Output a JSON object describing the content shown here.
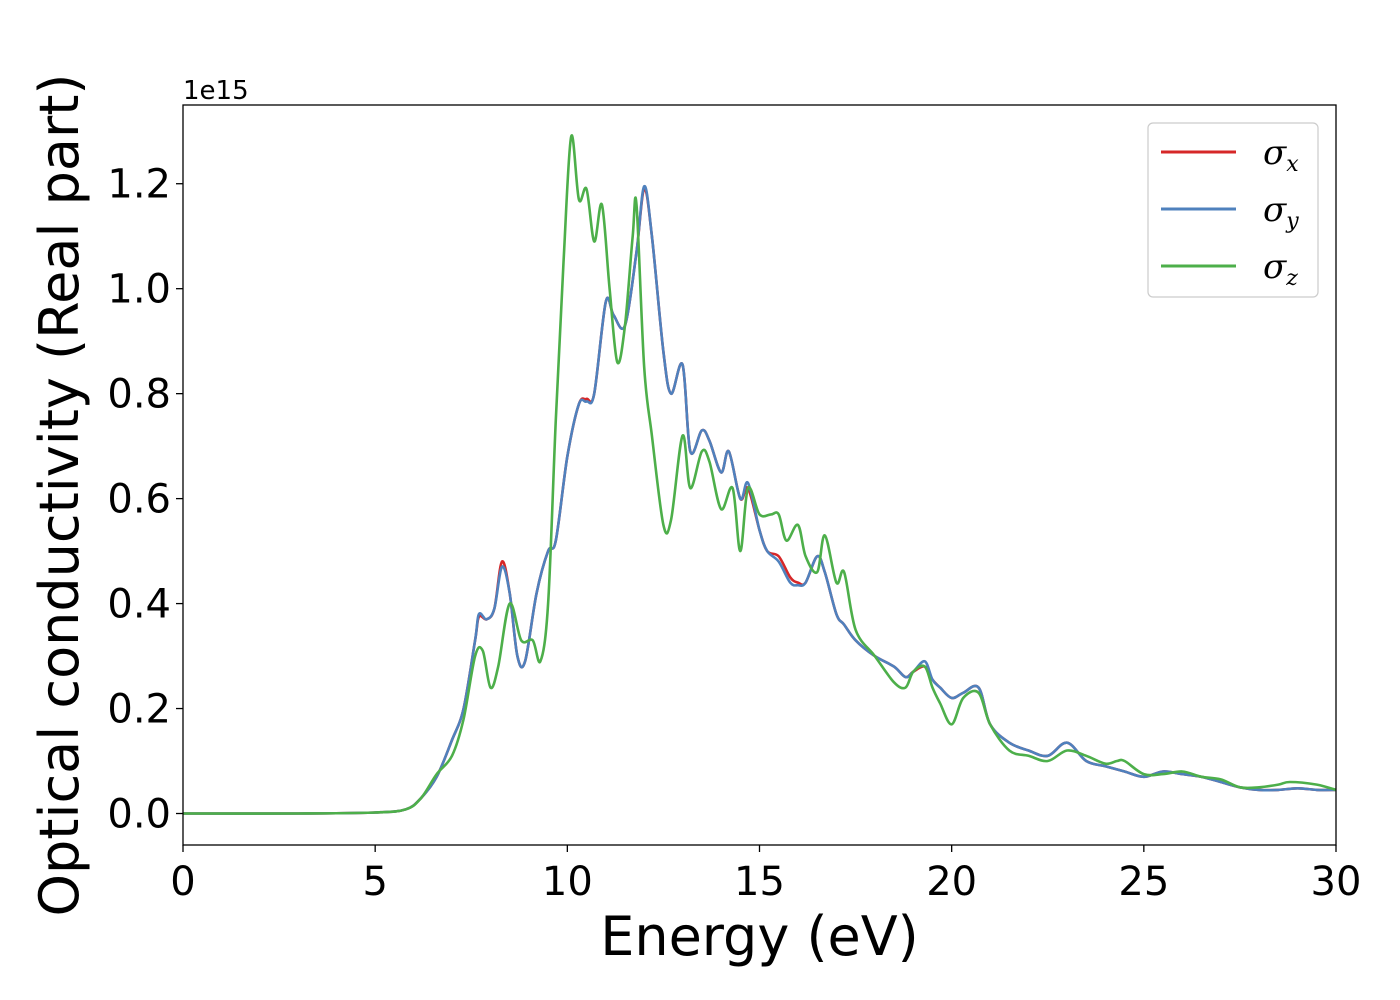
{
  "chart_data": {
    "type": "line",
    "xlabel": "Energy (eV)",
    "ylabel": "Optical conductivity (Real part)",
    "y_offset_label": "1e15",
    "xlim": [
      0,
      30
    ],
    "ylim": [
      -0.06,
      1.35
    ],
    "x_ticks": [
      0,
      5,
      10,
      15,
      20,
      25,
      30
    ],
    "y_ticks": [
      0.0,
      0.2,
      0.4,
      0.6,
      0.8,
      1.0,
      1.2
    ],
    "x_tick_labels": [
      "0",
      "5",
      "10",
      "15",
      "20",
      "25",
      "30"
    ],
    "y_tick_labels": [
      "0.0",
      "0.2",
      "0.4",
      "0.6",
      "0.8",
      "1.0",
      "1.2"
    ],
    "legend_position": "top-right",
    "grid": false,
    "series": [
      {
        "name": "σx",
        "legend_base": "σ",
        "legend_sub": "x",
        "color": "#d62728",
        "x": [
          0,
          3,
          5,
          5.8,
          6.2,
          6.6,
          7.0,
          7.3,
          7.6,
          7.7,
          7.9,
          8.1,
          8.3,
          8.5,
          8.7,
          8.9,
          9.2,
          9.5,
          9.7,
          10.0,
          10.3,
          10.5,
          10.7,
          11.0,
          11.2,
          11.5,
          11.8,
          12.0,
          12.2,
          12.5,
          12.7,
          13.0,
          13.2,
          13.5,
          13.7,
          14.0,
          14.2,
          14.5,
          14.7,
          15.0,
          15.2,
          15.5,
          15.8,
          16.0,
          16.2,
          16.5,
          16.7,
          17.0,
          17.2,
          17.5,
          18.0,
          18.5,
          18.8,
          19.0,
          19.3,
          19.5,
          19.7,
          20.0,
          20.3,
          20.7,
          21.0,
          21.5,
          22.0,
          22.5,
          23.0,
          23.5,
          24.0,
          24.5,
          25.0,
          25.5,
          26.0,
          26.5,
          27.0,
          27.5,
          28.0,
          28.5,
          29.0,
          29.5,
          30.0
        ],
        "y": [
          0.0,
          0.0,
          0.002,
          0.008,
          0.03,
          0.07,
          0.14,
          0.2,
          0.33,
          0.375,
          0.37,
          0.39,
          0.48,
          0.42,
          0.3,
          0.29,
          0.42,
          0.5,
          0.52,
          0.68,
          0.78,
          0.79,
          0.8,
          0.975,
          0.95,
          0.93,
          1.07,
          1.19,
          1.1,
          0.88,
          0.8,
          0.855,
          0.69,
          0.73,
          0.71,
          0.65,
          0.69,
          0.6,
          0.62,
          0.54,
          0.5,
          0.49,
          0.45,
          0.44,
          0.44,
          0.49,
          0.46,
          0.38,
          0.36,
          0.33,
          0.3,
          0.28,
          0.26,
          0.27,
          0.28,
          0.255,
          0.24,
          0.22,
          0.23,
          0.24,
          0.17,
          0.135,
          0.12,
          0.11,
          0.135,
          0.1,
          0.09,
          0.08,
          0.07,
          0.08,
          0.075,
          0.07,
          0.06,
          0.05,
          0.045,
          0.045,
          0.048,
          0.045,
          0.045
        ]
      },
      {
        "name": "σy",
        "legend_base": "σ",
        "legend_sub": "y",
        "color": "#4f81bd",
        "x": [
          0,
          3,
          5,
          5.8,
          6.2,
          6.6,
          7.0,
          7.3,
          7.6,
          7.7,
          7.9,
          8.1,
          8.3,
          8.5,
          8.7,
          8.9,
          9.2,
          9.5,
          9.7,
          10.0,
          10.3,
          10.5,
          10.7,
          11.0,
          11.2,
          11.5,
          11.8,
          12.0,
          12.2,
          12.5,
          12.7,
          13.0,
          13.2,
          13.5,
          13.7,
          14.0,
          14.2,
          14.5,
          14.7,
          15.0,
          15.2,
          15.5,
          15.8,
          16.0,
          16.2,
          16.5,
          16.7,
          17.0,
          17.2,
          17.5,
          18.0,
          18.5,
          18.8,
          19.0,
          19.3,
          19.5,
          19.7,
          20.0,
          20.3,
          20.7,
          21.0,
          21.5,
          22.0,
          22.5,
          23.0,
          23.5,
          24.0,
          24.5,
          25.0,
          25.5,
          26.0,
          26.5,
          27.0,
          27.5,
          28.0,
          28.5,
          29.0,
          29.5,
          30.0
        ],
        "y": [
          0.0,
          0.0,
          0.002,
          0.008,
          0.03,
          0.07,
          0.14,
          0.2,
          0.33,
          0.38,
          0.37,
          0.39,
          0.47,
          0.42,
          0.3,
          0.29,
          0.42,
          0.5,
          0.52,
          0.68,
          0.78,
          0.785,
          0.8,
          0.975,
          0.95,
          0.93,
          1.07,
          1.195,
          1.1,
          0.88,
          0.8,
          0.855,
          0.69,
          0.73,
          0.71,
          0.65,
          0.69,
          0.6,
          0.63,
          0.54,
          0.5,
          0.48,
          0.44,
          0.435,
          0.44,
          0.49,
          0.46,
          0.38,
          0.36,
          0.33,
          0.3,
          0.28,
          0.26,
          0.27,
          0.29,
          0.255,
          0.24,
          0.22,
          0.23,
          0.24,
          0.17,
          0.135,
          0.12,
          0.11,
          0.135,
          0.1,
          0.09,
          0.08,
          0.07,
          0.08,
          0.075,
          0.07,
          0.06,
          0.05,
          0.045,
          0.045,
          0.048,
          0.045,
          0.045
        ]
      },
      {
        "name": "σz",
        "legend_base": "σ",
        "legend_sub": "z",
        "color": "#4daf4a",
        "x": [
          0,
          3,
          5,
          5.8,
          6.2,
          6.6,
          7.0,
          7.3,
          7.6,
          7.8,
          8.0,
          8.2,
          8.5,
          8.8,
          9.1,
          9.3,
          9.5,
          9.7,
          9.9,
          10.1,
          10.3,
          10.5,
          10.7,
          10.9,
          11.1,
          11.3,
          11.5,
          11.7,
          11.8,
          12.0,
          12.2,
          12.5,
          12.7,
          13.0,
          13.2,
          13.5,
          13.7,
          14.0,
          14.3,
          14.5,
          14.7,
          15.0,
          15.3,
          15.5,
          15.7,
          16.0,
          16.2,
          16.5,
          16.7,
          17.0,
          17.2,
          17.5,
          18.0,
          18.5,
          18.8,
          19.0,
          19.3,
          19.5,
          19.7,
          20.0,
          20.3,
          20.7,
          21.0,
          21.5,
          22.0,
          22.5,
          23.0,
          23.5,
          24.0,
          24.3,
          24.5,
          25.0,
          25.5,
          26.0,
          26.5,
          27.0,
          27.5,
          28.0,
          28.5,
          28.8,
          29.5,
          30.0
        ],
        "y": [
          0.0,
          0.0,
          0.002,
          0.008,
          0.03,
          0.075,
          0.11,
          0.18,
          0.3,
          0.31,
          0.24,
          0.28,
          0.4,
          0.33,
          0.33,
          0.29,
          0.4,
          0.75,
          1.05,
          1.29,
          1.17,
          1.19,
          1.09,
          1.16,
          1.0,
          0.86,
          0.93,
          1.1,
          1.16,
          0.85,
          0.72,
          0.55,
          0.56,
          0.72,
          0.62,
          0.69,
          0.67,
          0.58,
          0.62,
          0.5,
          0.62,
          0.57,
          0.57,
          0.57,
          0.52,
          0.55,
          0.49,
          0.46,
          0.53,
          0.44,
          0.46,
          0.35,
          0.3,
          0.25,
          0.24,
          0.27,
          0.28,
          0.24,
          0.21,
          0.17,
          0.22,
          0.23,
          0.17,
          0.12,
          0.11,
          0.1,
          0.12,
          0.11,
          0.095,
          0.1,
          0.1,
          0.075,
          0.075,
          0.08,
          0.07,
          0.065,
          0.05,
          0.05,
          0.055,
          0.06,
          0.055,
          0.045
        ]
      }
    ]
  }
}
